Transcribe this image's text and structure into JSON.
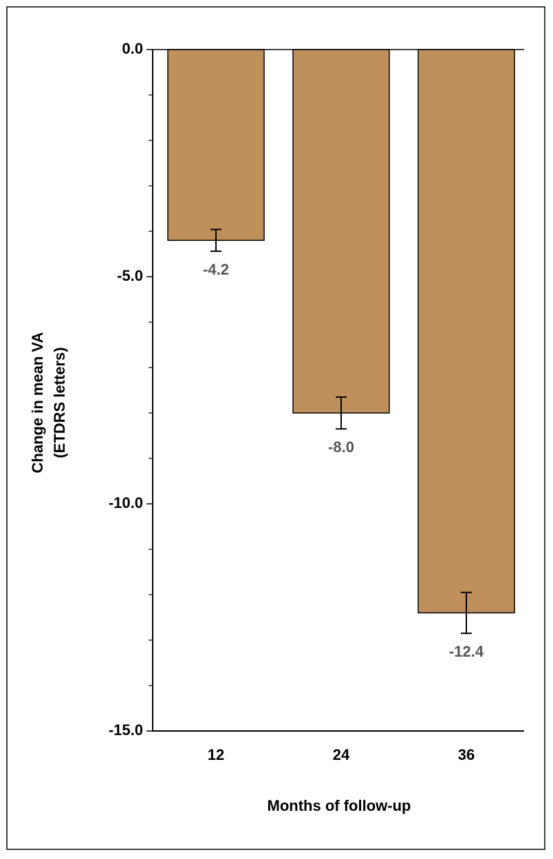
{
  "chart_data": {
    "type": "bar",
    "ylabel": [
      "Change in mean VA",
      "(ETDRS letters)"
    ],
    "xlabel": "Months of follow-up",
    "categories": [
      "12",
      "24",
      "36"
    ],
    "values": [
      -4.2,
      -8.0,
      -12.4
    ],
    "value_labels": [
      "-4.2",
      "-8.0",
      "-12.4"
    ],
    "errors": [
      0.24,
      0.35,
      0.45
    ],
    "color": "#c0905c",
    "ylim": [
      -15,
      0
    ],
    "yticks": [
      {
        "value": 0,
        "label": "0.0"
      },
      {
        "value": -5,
        "label": "-5.0"
      },
      {
        "value": -10,
        "label": "-10.0"
      },
      {
        "value": -15,
        "label": "-15.0"
      }
    ],
    "minor_yticks": [
      -1,
      -2,
      -3,
      -4,
      -6,
      -7,
      -8,
      -9,
      -11,
      -12,
      -13,
      -14
    ]
  }
}
